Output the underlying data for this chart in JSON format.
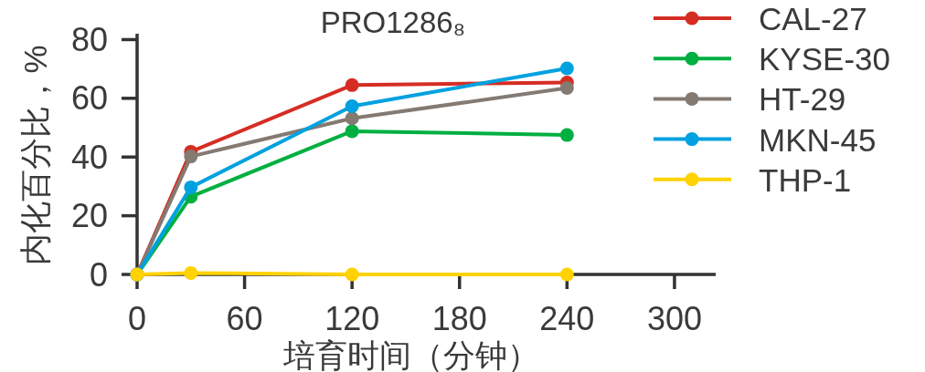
{
  "chart_data": {
    "type": "line",
    "title": "PRO1286₈",
    "xlabel": "培育时间（分钟）",
    "ylabel": "内化百分比，%",
    "x": [
      0,
      30,
      120,
      240
    ],
    "xlim": [
      0,
      323
    ],
    "xticks": [
      0,
      60,
      120,
      180,
      240,
      300
    ],
    "ylim": [
      0,
      82
    ],
    "yticks": [
      0,
      20,
      40,
      60,
      80
    ],
    "marker": "circle",
    "line_style": "solid",
    "legend": "top right",
    "series": [
      {
        "name": "CAL-27",
        "color": "#d62d23",
        "values": [
          0,
          41.8,
          64.5,
          65.4
        ]
      },
      {
        "name": "KYSE-30",
        "color": "#00af41",
        "values": [
          0,
          26.5,
          48.8,
          47.5
        ]
      },
      {
        "name": "HT-29",
        "color": "#847a72",
        "values": [
          0,
          40.2,
          53.2,
          63.5
        ]
      },
      {
        "name": "MKN-45",
        "color": "#00a1e0",
        "values": [
          0,
          29.7,
          57.3,
          70.2
        ]
      },
      {
        "name": "THP-1",
        "color": "#ffd200",
        "values": [
          0,
          0.5,
          0,
          0
        ]
      }
    ]
  }
}
